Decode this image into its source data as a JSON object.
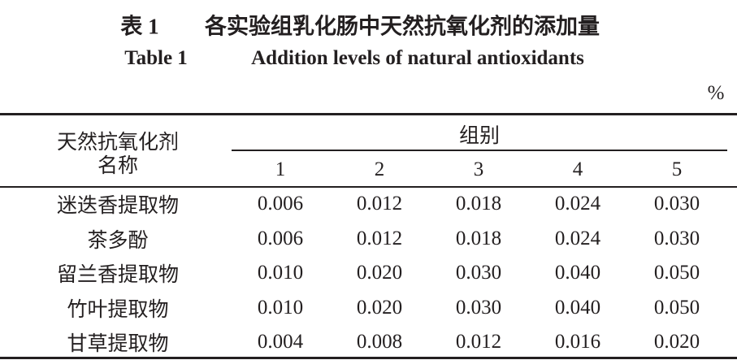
{
  "title": {
    "cn_label": "表 1",
    "cn_text": "各实验组乳化肠中天然抗氧化剂的添加量",
    "en_label": "Table 1",
    "en_text": "Addition levels of natural antioxidants"
  },
  "unit": "%",
  "table": {
    "row_header": [
      "天然抗氧化剂",
      "名称"
    ],
    "group_header": "组别",
    "columns": [
      "1",
      "2",
      "3",
      "4",
      "5"
    ],
    "rows": [
      [
        "迷迭香提取物",
        "0.006",
        "0.012",
        "0.018",
        "0.024",
        "0.030"
      ],
      [
        "茶多酚",
        "0.006",
        "0.012",
        "0.018",
        "0.024",
        "0.030"
      ],
      [
        "留兰香提取物",
        "0.010",
        "0.020",
        "0.030",
        "0.040",
        "0.050"
      ],
      [
        "竹叶提取物",
        "0.010",
        "0.020",
        "0.030",
        "0.040",
        "0.050"
      ],
      [
        "甘草提取物",
        "0.004",
        "0.008",
        "0.012",
        "0.016",
        "0.020"
      ]
    ]
  }
}
